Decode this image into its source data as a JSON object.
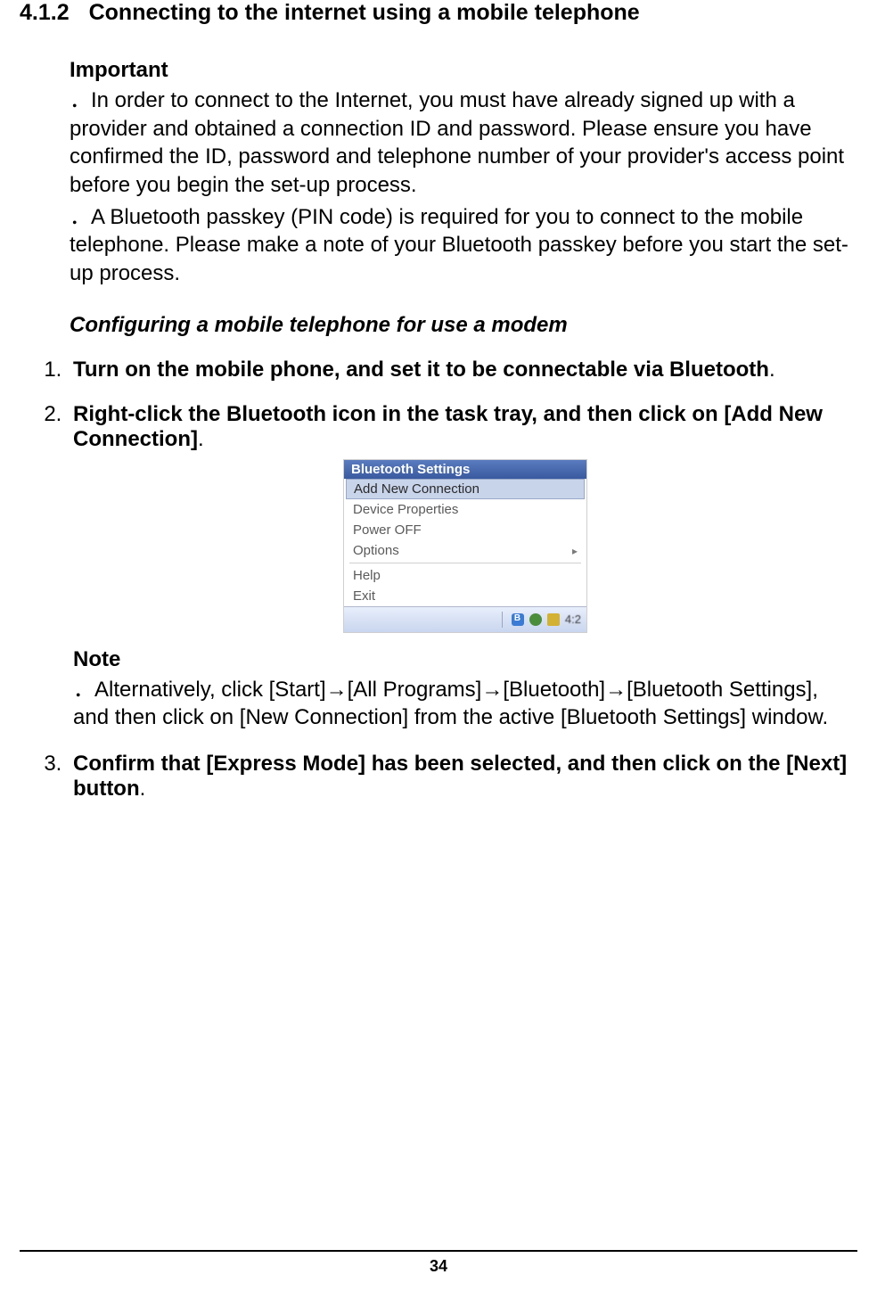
{
  "section": {
    "number": "4.1.2",
    "title": "Connecting to the internet using a mobile telephone"
  },
  "important": {
    "label": "Important",
    "bullets": [
      "In order to connect to the Internet, you must have already signed up with a provider and obtained a connection ID and password. Please ensure you have confirmed the ID, password and telephone number of your provider's access point before you begin the set-up process.",
      "A Bluetooth passkey (PIN code) is required for you to connect to the mobile telephone. Please make a note of your Bluetooth passkey before you start the set-up process."
    ]
  },
  "subheading": "Configuring a mobile telephone for use a modem",
  "steps": {
    "s1": {
      "bold": "Turn on the mobile phone, and set it to be connectable via Bluetooth",
      "tail": "."
    },
    "s2": {
      "bold": "Right-click the Bluetooth icon in the task tray, and then click on [Add New Connection]",
      "tail": "."
    },
    "s3": {
      "bold": "Confirm that [Express Mode] has been selected, and then click on the [Next] button",
      "tail": "."
    }
  },
  "menu": {
    "title": "Bluetooth Settings",
    "items": {
      "add": "Add New Connection",
      "device": "Device Properties",
      "power": "Power OFF",
      "options": "Options",
      "help": "Help",
      "exit": "Exit"
    },
    "tray_clock": "4:2"
  },
  "note": {
    "label": "Note",
    "body": "Alternatively, click [Start]→[All Programs]→[Bluetooth]→[Bluetooth Settings], and then click on [New Connection] from the active [Bluetooth Settings] window."
  },
  "page_number": "34",
  "style": {
    "bullet_prefix": "．"
  }
}
